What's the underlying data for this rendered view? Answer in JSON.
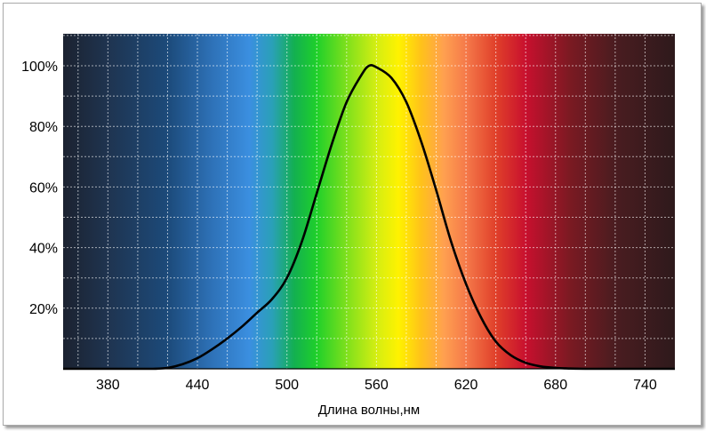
{
  "chart_data": {
    "type": "line",
    "title": "",
    "xlabel": "Длина волны,нм",
    "ylabel": "",
    "xlim": [
      350,
      760
    ],
    "ylim": [
      0,
      100
    ],
    "x_ticks": [
      380,
      440,
      500,
      560,
      620,
      680,
      740
    ],
    "x_tick_labels": [
      "380",
      "440",
      "500",
      "560",
      "620",
      "680",
      "740"
    ],
    "y_ticks": [
      20,
      40,
      60,
      80,
      100
    ],
    "y_tick_labels": [
      "20%",
      "40%",
      "60%",
      "80%",
      "100%"
    ],
    "grid": true,
    "background": "visible light spectrum gradient",
    "spectrum_colors": {
      "350": "#1b2230",
      "380": "#1f3450",
      "420": "#1c4a7a",
      "450": "#2e72b8",
      "475": "#3b8fe0",
      "490": "#2aa0b8",
      "505": "#13b050",
      "520": "#1fd02a",
      "540": "#7ee01c",
      "560": "#d4ee12",
      "575": "#fff200",
      "590": "#ffc21a",
      "605": "#ffa050",
      "620": "#f57a4a",
      "640": "#e0402a",
      "660": "#c8102e",
      "690": "#7a1a22",
      "720": "#4a1c20",
      "760": "#2e1a1c"
    },
    "line_color": "#000000",
    "series": [
      {
        "x": [
          350,
          380,
          400,
          410,
          420,
          430,
          440,
          450,
          460,
          470,
          480,
          490,
          500,
          510,
          520,
          530,
          540,
          550,
          555,
          560,
          570,
          580,
          590,
          600,
          610,
          620,
          630,
          640,
          650,
          660,
          670,
          680,
          690,
          700,
          720,
          760
        ],
        "values": [
          0,
          0,
          0,
          0,
          0.3,
          1.5,
          3.5,
          6.5,
          10,
          14,
          18.5,
          23,
          30,
          42,
          58,
          74,
          88,
          97,
          100,
          99.5,
          96,
          88,
          75,
          59,
          42,
          28,
          17,
          9,
          4.5,
          2,
          0.8,
          0.3,
          0.1,
          0,
          0,
          0
        ]
      }
    ]
  }
}
